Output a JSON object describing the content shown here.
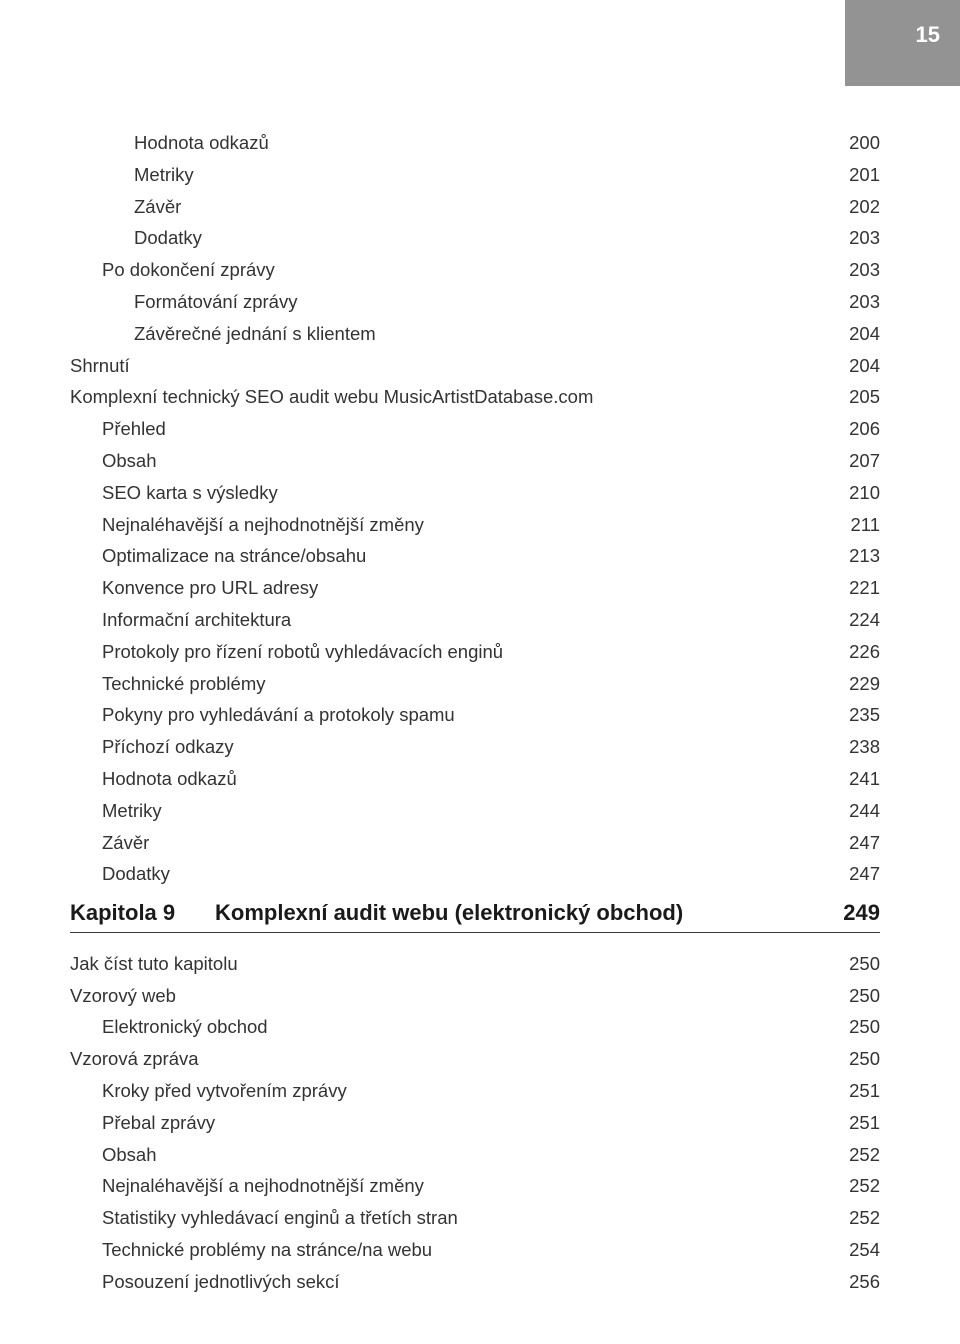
{
  "page_number": "15",
  "toc_block1": [
    {
      "label": "Hodnota odkazů",
      "page": "200",
      "level": 2
    },
    {
      "label": "Metriky",
      "page": "201",
      "level": 2
    },
    {
      "label": "Závěr",
      "page": "202",
      "level": 2
    },
    {
      "label": "Dodatky",
      "page": "203",
      "level": 2
    },
    {
      "label": "Po dokončení zprávy",
      "page": "203",
      "level": 1
    },
    {
      "label": "Formátování zprávy",
      "page": "203",
      "level": 2
    },
    {
      "label": "Závěrečné jednání s klientem",
      "page": "204",
      "level": 2
    },
    {
      "label": "Shrnutí",
      "page": "204",
      "level": 0
    },
    {
      "label": "Komplexní technický SEO audit webu MusicArtistDatabase.com",
      "page": "205",
      "level": 0
    },
    {
      "label": "Přehled",
      "page": "206",
      "level": 1
    },
    {
      "label": "Obsah",
      "page": "207",
      "level": 1
    },
    {
      "label": "SEO karta s výsledky",
      "page": "210",
      "level": 1
    },
    {
      "label": "Nejnaléhavější a nejhodnotnější změny",
      "page": "211",
      "level": 1
    },
    {
      "label": "Optimalizace na stránce/obsahu",
      "page": "213",
      "level": 1
    },
    {
      "label": "Konvence pro URL adresy",
      "page": "221",
      "level": 1
    },
    {
      "label": "Informační architektura",
      "page": "224",
      "level": 1
    },
    {
      "label": "Protokoly pro řízení robotů vyhledávacích enginů",
      "page": "226",
      "level": 1
    },
    {
      "label": "Technické problémy",
      "page": "229",
      "level": 1
    },
    {
      "label": "Pokyny pro vyhledávání a protokoly spamu",
      "page": "235",
      "level": 1
    },
    {
      "label": "Příchozí odkazy",
      "page": "238",
      "level": 1
    },
    {
      "label": "Hodnota odkazů",
      "page": "241",
      "level": 1
    },
    {
      "label": "Metriky",
      "page": "244",
      "level": 1
    },
    {
      "label": "Závěr",
      "page": "247",
      "level": 1
    },
    {
      "label": "Dodatky",
      "page": "247",
      "level": 1
    }
  ],
  "chapter": {
    "num": "Kapitola 9",
    "title": "Komplexní audit webu (elektronický obchod)",
    "page": "249"
  },
  "toc_block2": [
    {
      "label": "Jak číst tuto kapitolu",
      "page": "250",
      "level": 0
    },
    {
      "label": "Vzorový web",
      "page": "250",
      "level": 0
    },
    {
      "label": "Elektronický obchod",
      "page": "250",
      "level": 1
    },
    {
      "label": "Vzorová zpráva",
      "page": "250",
      "level": 0
    },
    {
      "label": "Kroky před vytvořením zprávy",
      "page": "251",
      "level": 1
    },
    {
      "label": "Přebal zprávy",
      "page": "251",
      "level": 1
    },
    {
      "label": "Obsah",
      "page": "252",
      "level": 1
    },
    {
      "label": "Nejnaléhavější a nejhodnotnější změny",
      "page": "252",
      "level": 1
    },
    {
      "label": "Statistiky vyhledávací enginů a třetích stran",
      "page": "252",
      "level": 1
    },
    {
      "label": "Technické problémy na stránce/na webu",
      "page": "254",
      "level": 1
    },
    {
      "label": "Posouzení jednotlivých sekcí",
      "page": "256",
      "level": 1
    }
  ]
}
